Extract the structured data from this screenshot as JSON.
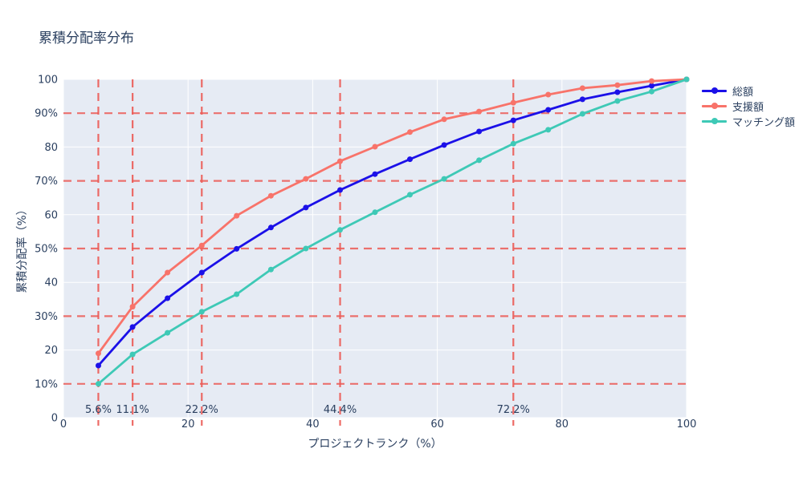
{
  "chart_data": {
    "type": "line",
    "title": "累積分配率分布",
    "xlabel": "プロジェクトランク（%）",
    "ylabel": "累積分配率（%）",
    "xlim": [
      0,
      100
    ],
    "ylim": [
      0,
      100
    ],
    "grid": true,
    "legend_position": "right",
    "x": [
      5.6,
      11.1,
      16.7,
      22.2,
      27.8,
      33.3,
      38.9,
      44.4,
      50.0,
      55.6,
      61.1,
      66.7,
      72.2,
      77.8,
      83.3,
      88.9,
      94.4,
      100.0
    ],
    "series": [
      {
        "key": "total",
        "name": "総額",
        "color": "#1B10E8",
        "values": [
          15.4,
          26.8,
          35.3,
          42.9,
          49.9,
          56.2,
          62.1,
          67.3,
          72.0,
          76.4,
          80.6,
          84.6,
          87.9,
          91.0,
          94.1,
          96.2,
          98.1,
          100.0
        ]
      },
      {
        "key": "support",
        "name": "支援額",
        "color": "#F8736A",
        "values": [
          19.0,
          32.8,
          42.9,
          50.9,
          59.7,
          65.6,
          70.6,
          75.8,
          80.1,
          84.4,
          88.2,
          90.5,
          93.1,
          95.5,
          97.4,
          98.3,
          99.5,
          100.0
        ]
      },
      {
        "key": "matching",
        "name": "マッチング額",
        "color": "#3EC9B6",
        "values": [
          10.0,
          18.7,
          25.1,
          31.3,
          36.5,
          43.8,
          50.0,
          55.5,
          60.7,
          65.9,
          70.6,
          76.1,
          81.0,
          85.1,
          89.8,
          93.6,
          96.4,
          100.0
        ]
      }
    ],
    "x_ticks": [
      {
        "value": 0,
        "label": "0"
      },
      {
        "value": 20,
        "label": "20"
      },
      {
        "value": 40,
        "label": "40"
      },
      {
        "value": 60,
        "label": "60"
      },
      {
        "value": 80,
        "label": "80"
      },
      {
        "value": 100,
        "label": "100"
      }
    ],
    "y_ticks": [
      {
        "value": 0,
        "label": "0"
      },
      {
        "value": 10,
        "label": "10%"
      },
      {
        "value": 20,
        "label": "20"
      },
      {
        "value": 30,
        "label": "30%"
      },
      {
        "value": 40,
        "label": "40"
      },
      {
        "value": 50,
        "label": "50%"
      },
      {
        "value": 60,
        "label": "60"
      },
      {
        "value": 70,
        "label": "70%"
      },
      {
        "value": 80,
        "label": "80"
      },
      {
        "value": 90,
        "label": "90%"
      },
      {
        "value": 100,
        "label": "100"
      }
    ],
    "x_guides": [
      {
        "value": 5.6,
        "label": "5.6%"
      },
      {
        "value": 11.1,
        "label": "11.1%"
      },
      {
        "value": 22.2,
        "label": "22.2%"
      },
      {
        "value": 44.4,
        "label": "44.4%"
      },
      {
        "value": 72.2,
        "label": "72.2%"
      }
    ],
    "y_guides": [
      10,
      30,
      50,
      70,
      90
    ],
    "colors": {
      "plot_bg": "#E6EBF4",
      "grid": "#FFFFFF",
      "guide": "#EC5B56",
      "text": "#2A3F5F"
    }
  }
}
